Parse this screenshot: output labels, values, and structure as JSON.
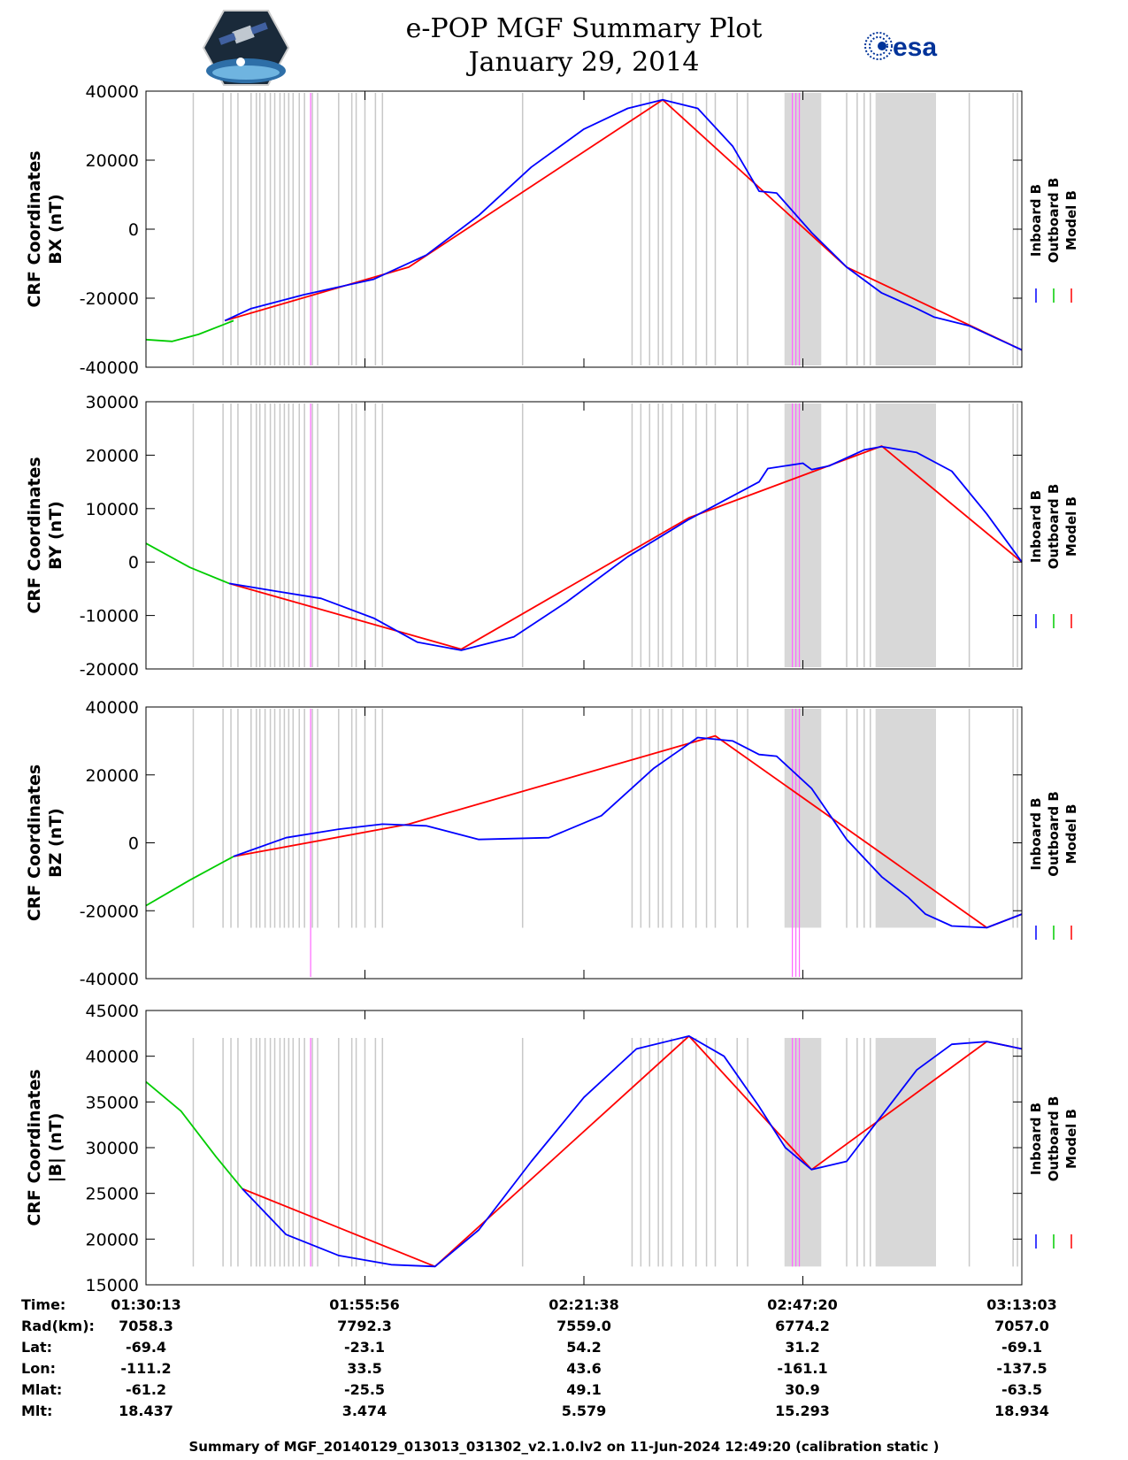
{
  "header": {
    "title": "e-POP MGF Summary Plot",
    "date": "January 29, 2014",
    "esa_logo_text": "esa"
  },
  "colors": {
    "inboard": "#0000ff",
    "outboard": "#00cc00",
    "model": "#ff0000",
    "gap_gray": "#c8c8c8",
    "flag_magenta": "#ff66ff"
  },
  "legend": {
    "inboard": "Inboard B",
    "outboard": "Outboard B",
    "model": "Model B"
  },
  "chart_data": [
    {
      "type": "line",
      "ylabel_line1": "CRF Coordinates",
      "ylabel_line2": "BX (nT)",
      "ylim": [
        -40000,
        40000
      ],
      "yticks": [
        -40000,
        -20000,
        0,
        20000,
        40000
      ],
      "ytick_labels": [
        "-40000",
        "-20000",
        "0",
        "20000",
        "40000"
      ],
      "series": [
        {
          "name": "Outboard B",
          "x": [
            0,
            0.03,
            0.06,
            0.1
          ],
          "y": [
            -32000,
            -32500,
            -30500,
            -26500
          ]
        },
        {
          "name": "Inboard B",
          "x": [
            0.09,
            0.12,
            0.18,
            0.26,
            0.32,
            0.38,
            0.44,
            0.5,
            0.55,
            0.59,
            0.63,
            0.67,
            0.7,
            0.72,
            0.76,
            0.8,
            0.84,
            0.88,
            0.9,
            0.94,
            1.0
          ],
          "y": [
            -26500,
            -23000,
            -19000,
            -14500,
            -7500,
            4000,
            18000,
            29000,
            35000,
            37500,
            35000,
            24000,
            11000,
            10500,
            -1000,
            -11000,
            -18500,
            -23000,
            -25500,
            -28000,
            -35000
          ]
        },
        {
          "name": "Model B",
          "x": [
            0.09,
            0.3,
            0.59,
            0.8,
            1.0
          ],
          "y": [
            -26500,
            -11000,
            37500,
            -11000,
            -35000
          ]
        }
      ]
    },
    {
      "type": "line",
      "ylabel_line1": "CRF Coordinates",
      "ylabel_line2": "BY (nT)",
      "ylim": [
        -20000,
        30000
      ],
      "yticks": [
        -20000,
        -10000,
        0,
        10000,
        20000,
        30000
      ],
      "ytick_labels": [
        "-20000",
        "-10000",
        "0",
        "10000",
        "20000",
        "30000"
      ],
      "series": [
        {
          "name": "Outboard B",
          "x": [
            0,
            0.05,
            0.095
          ],
          "y": [
            3500,
            -1000,
            -4000
          ]
        },
        {
          "name": "Inboard B",
          "x": [
            0.095,
            0.15,
            0.2,
            0.26,
            0.31,
            0.36,
            0.42,
            0.48,
            0.55,
            0.62,
            0.66,
            0.7,
            0.71,
            0.75,
            0.76,
            0.78,
            0.82,
            0.84,
            0.88,
            0.92,
            0.96,
            1.0
          ],
          "y": [
            -4000,
            -5500,
            -6800,
            -10500,
            -15000,
            -16500,
            -14000,
            -7500,
            1000,
            8000,
            11500,
            15000,
            17500,
            18500,
            17300,
            18000,
            21000,
            21600,
            20500,
            17000,
            9000,
            0
          ]
        },
        {
          "name": "Model B",
          "x": [
            0.095,
            0.36,
            0.62,
            0.84,
            1.0
          ],
          "y": [
            -4000,
            -16300,
            8300,
            21700,
            0
          ]
        }
      ]
    },
    {
      "type": "line",
      "ylabel_line1": "CRF Coordinates",
      "ylabel_line2": "BZ (nT)",
      "ylim": [
        -40000,
        40000
      ],
      "yticks": [
        -40000,
        -20000,
        0,
        20000,
        40000
      ],
      "ytick_labels": [
        "-40000",
        "-20000",
        "0",
        "20000",
        "40000"
      ],
      "series": [
        {
          "name": "Outboard B",
          "x": [
            0,
            0.05,
            0.1
          ],
          "y": [
            -18500,
            -11000,
            -4000
          ]
        },
        {
          "name": "Inboard B",
          "x": [
            0.1,
            0.16,
            0.22,
            0.27,
            0.32,
            0.38,
            0.46,
            0.52,
            0.58,
            0.63,
            0.67,
            0.7,
            0.72,
            0.76,
            0.8,
            0.84,
            0.87,
            0.89,
            0.92,
            0.96,
            1.0
          ],
          "y": [
            -4000,
            1500,
            4000,
            5500,
            5000,
            1000,
            1500,
            8000,
            22000,
            31000,
            30000,
            26000,
            25500,
            16000,
            1000,
            -10000,
            -16000,
            -21000,
            -24500,
            -25000,
            -21000
          ]
        },
        {
          "name": "Model B",
          "x": [
            0.1,
            0.3,
            0.65,
            0.96,
            1.0
          ],
          "y": [
            -4000,
            5500,
            31500,
            -25000,
            -21000
          ]
        }
      ]
    },
    {
      "type": "line",
      "ylabel_line1": "CRF Coordinates",
      "ylabel_line2": "|B| (nT)",
      "ylim": [
        15000,
        45000
      ],
      "yticks": [
        15000,
        20000,
        25000,
        30000,
        35000,
        40000,
        45000
      ],
      "ytick_labels": [
        "15000",
        "20000",
        "25000",
        "30000",
        "35000",
        "40000",
        "45000"
      ],
      "series": [
        {
          "name": "Outboard B",
          "x": [
            0,
            0.04,
            0.08,
            0.11
          ],
          "y": [
            37200,
            34000,
            29000,
            25500
          ]
        },
        {
          "name": "Inboard B",
          "x": [
            0.11,
            0.16,
            0.22,
            0.28,
            0.33,
            0.38,
            0.44,
            0.5,
            0.56,
            0.62,
            0.66,
            0.7,
            0.73,
            0.76,
            0.8,
            0.84,
            0.88,
            0.92,
            0.96,
            1.0
          ],
          "y": [
            25500,
            20500,
            18200,
            17200,
            17000,
            21000,
            28500,
            35500,
            40800,
            42200,
            40000,
            34500,
            30000,
            27600,
            28500,
            33500,
            38500,
            41300,
            41600,
            40800
          ]
        },
        {
          "name": "Model B",
          "x": [
            0.11,
            0.33,
            0.62,
            0.76,
            0.96,
            1.0
          ],
          "y": [
            25500,
            17000,
            42200,
            27600,
            41600,
            40800
          ]
        }
      ]
    }
  ],
  "xaxis": {
    "time_labels": [
      "01:30:13",
      "01:55:56",
      "02:21:38",
      "02:47:20",
      "03:13:03"
    ]
  },
  "info": {
    "labels": [
      "Time:",
      "Rad(km):",
      "Lat:",
      "Lon:",
      "Mlat:",
      "Mlt:"
    ],
    "rows": [
      [
        "01:30:13",
        "01:55:56",
        "02:21:38",
        "02:47:20",
        "03:13:03"
      ],
      [
        "7058.3",
        "7792.3",
        "7559.0",
        "6774.2",
        "7057.0"
      ],
      [
        "-69.4",
        "-23.1",
        "54.2",
        "31.2",
        "-69.1"
      ],
      [
        "-111.2",
        "33.5",
        "43.6",
        "-161.1",
        "-137.5"
      ],
      [
        "-61.2",
        "-25.5",
        "49.1",
        "30.9",
        "-63.5"
      ],
      [
        "18.437",
        "3.474",
        "5.579",
        "15.293",
        "18.934"
      ]
    ]
  },
  "footer": "Summary of MGF_20140129_013013_031302_v2.1.0.lv2 on 11-Jun-2024 12:49:20 (calibration static )"
}
